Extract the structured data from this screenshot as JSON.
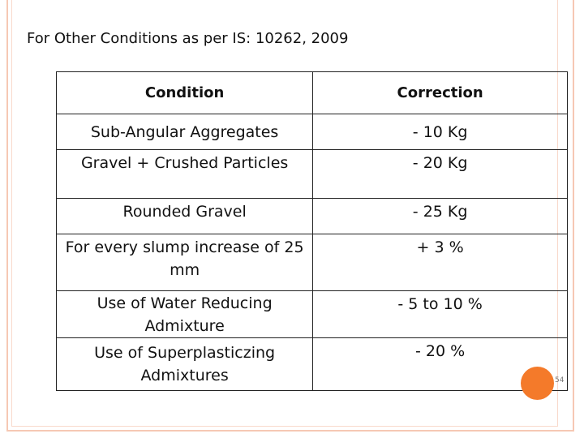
{
  "slide": {
    "heading": "For Other Conditions as per IS: 10262, 2009",
    "page_number": "54",
    "accent_color": "#f47a2a"
  },
  "table": {
    "headers": [
      "Condition",
      "Correction"
    ],
    "rows": [
      {
        "condition": "Sub-Angular Aggregates",
        "correction": "- 10 Kg"
      },
      {
        "condition": "Gravel + Crushed Particles",
        "correction": "- 20 Kg"
      },
      {
        "condition": "Rounded Gravel",
        "correction": "- 25 Kg"
      },
      {
        "condition": "For every slump increase of 25 mm",
        "correction": "+ 3 %"
      },
      {
        "condition": "Use of Water Reducing Admixture",
        "correction": "- 5 to 10 %"
      },
      {
        "condition": "Use of Superplasticzing Admixtures",
        "correction": "- 20 %"
      }
    ]
  }
}
